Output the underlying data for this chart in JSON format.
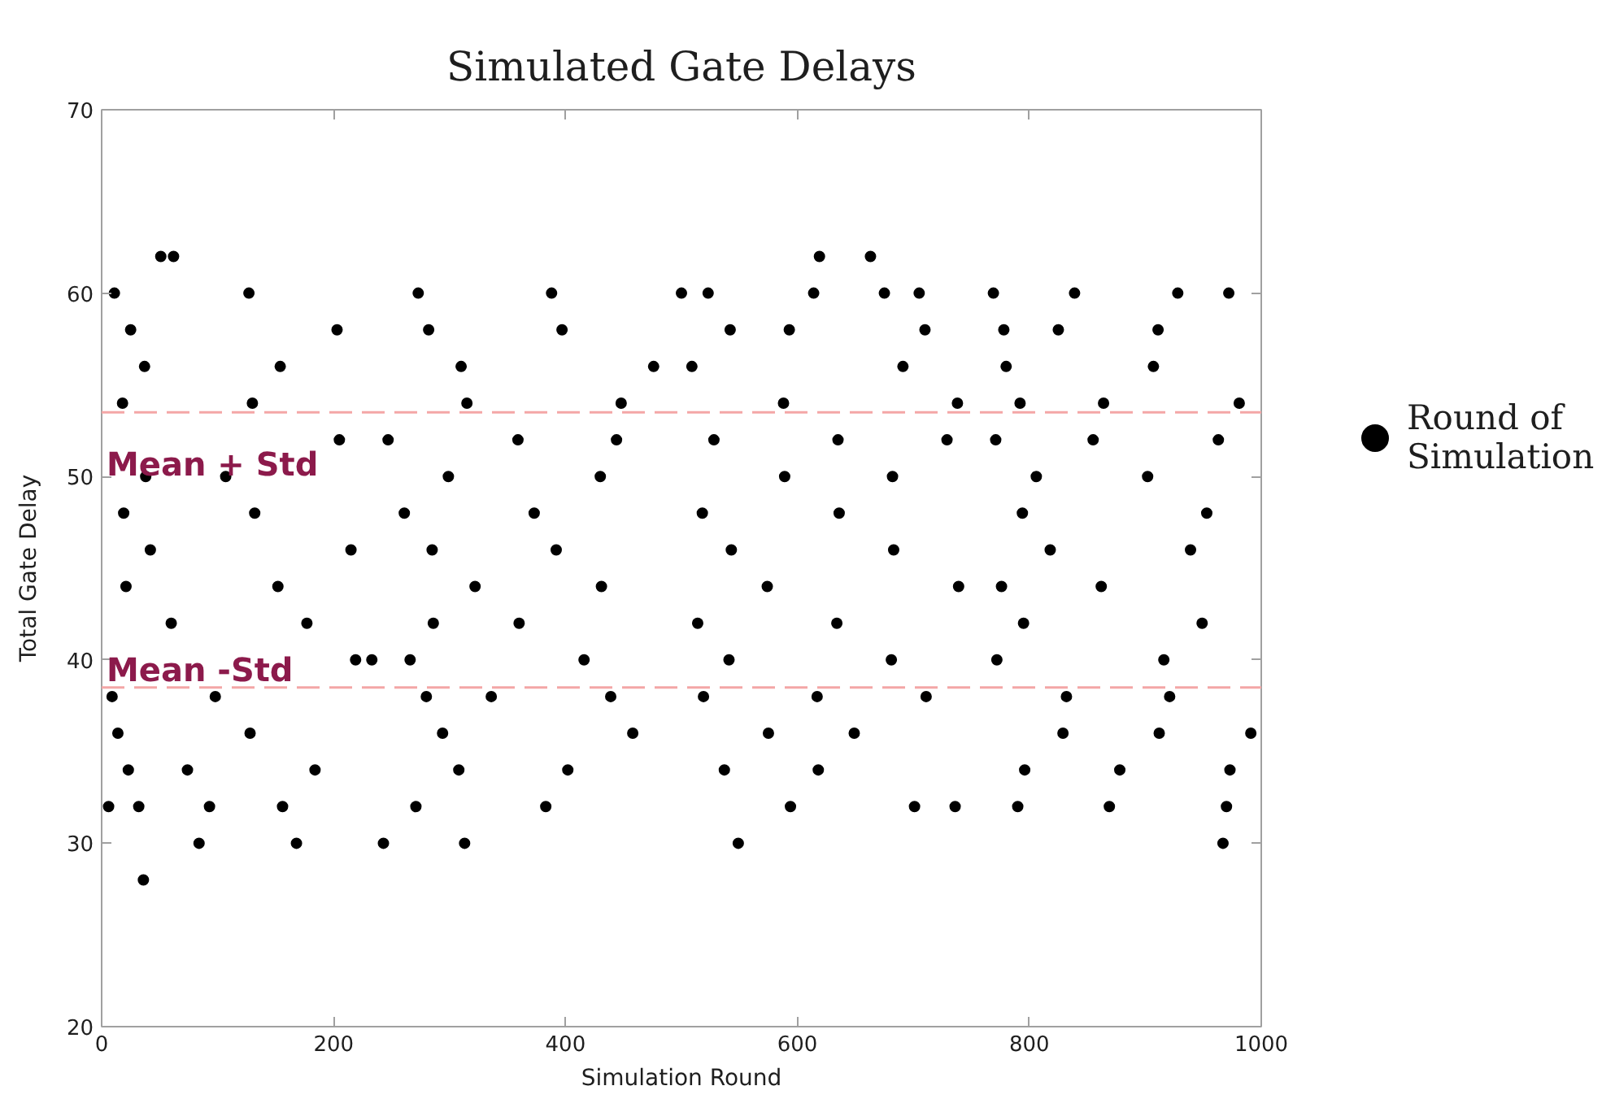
{
  "chart_data": {
    "type": "scatter",
    "title": "Simulated Gate Delays",
    "xlabel": "Simulation Round",
    "ylabel": "Total Gate Delay",
    "x": [
      6,
      9,
      11,
      14,
      18,
      19,
      21,
      23,
      25,
      32,
      36,
      37,
      38,
      42,
      247,
      51,
      60,
      62,
      74,
      84,
      93,
      98,
      107,
      127,
      128,
      130,
      132,
      152,
      154,
      156,
      168,
      177,
      184,
      205,
      219,
      203,
      215,
      233,
      243,
      261,
      266,
      271,
      273,
      280,
      282,
      285,
      286,
      294,
      299,
      308,
      310,
      313,
      315,
      322,
      336,
      359,
      360,
      373,
      383,
      388,
      392,
      397,
      402,
      416,
      430,
      431,
      439,
      444,
      448,
      458,
      476,
      500,
      509,
      514,
      518,
      519,
      523,
      528,
      537,
      541,
      542,
      543,
      549,
      574,
      575,
      588,
      589,
      593,
      594,
      614,
      617,
      618,
      619,
      634,
      635,
      636,
      649,
      663,
      675,
      681,
      682,
      683,
      691,
      701,
      705,
      710,
      711,
      729,
      736,
      738,
      739,
      769,
      771,
      772,
      776,
      778,
      780,
      790,
      792,
      794,
      795,
      796,
      806,
      818,
      825,
      829,
      832,
      839,
      855,
      862,
      864,
      869,
      878,
      902,
      907,
      911,
      912,
      916,
      921,
      928,
      939,
      949,
      953,
      963,
      967,
      970,
      972,
      973,
      981,
      991
    ],
    "series": [
      {
        "name": "Round of Simulation",
        "color": "#000000",
        "values": [
          32,
          38,
          60,
          36,
          54,
          48,
          44,
          34,
          58,
          32,
          28,
          56,
          50,
          46,
          52,
          62,
          42,
          62,
          34,
          30,
          32,
          38,
          50,
          60,
          36,
          54,
          48,
          44,
          56,
          32,
          30,
          42,
          34,
          52,
          40,
          58,
          46,
          40,
          30,
          48,
          40,
          32,
          60,
          38,
          58,
          46,
          42,
          36,
          50,
          34,
          56,
          30,
          54,
          44,
          38,
          52,
          42,
          48,
          32,
          60,
          46,
          58,
          34,
          40,
          50,
          44,
          38,
          52,
          54,
          36,
          56,
          60,
          56,
          42,
          48,
          38,
          60,
          52,
          34,
          40,
          58,
          46,
          30,
          44,
          36,
          54,
          50,
          58,
          32,
          60,
          38,
          34,
          62,
          42,
          52,
          48,
          36,
          62,
          60,
          40,
          50,
          46,
          56,
          32,
          60,
          58,
          38,
          52,
          32,
          54,
          44,
          60,
          52,
          40,
          44,
          58,
          56,
          32,
          54,
          48,
          42,
          34,
          50,
          46,
          58,
          36,
          38,
          60,
          52,
          44,
          54,
          32,
          34,
          50,
          56,
          58,
          36,
          40,
          38,
          60,
          46,
          42,
          48,
          52,
          30,
          32,
          60,
          34,
          54,
          36
        ]
      }
    ],
    "xlim": [
      0,
      1000
    ],
    "ylim": [
      20,
      70
    ],
    "xticks": [
      0,
      200,
      400,
      600,
      800,
      1000
    ],
    "yticks": [
      20,
      30,
      40,
      50,
      60,
      70
    ],
    "ref_lines": [
      {
        "axis": "y",
        "value": 53.5,
        "label": "Mean + Std",
        "color": "#f4a6a6",
        "line_style": "dashed"
      },
      {
        "axis": "y",
        "value": 38.5,
        "label": "Mean -Std",
        "color": "#f4a6a6",
        "line_style": "dashed"
      }
    ],
    "legend": "right",
    "marker": "circle",
    "grid": false
  }
}
